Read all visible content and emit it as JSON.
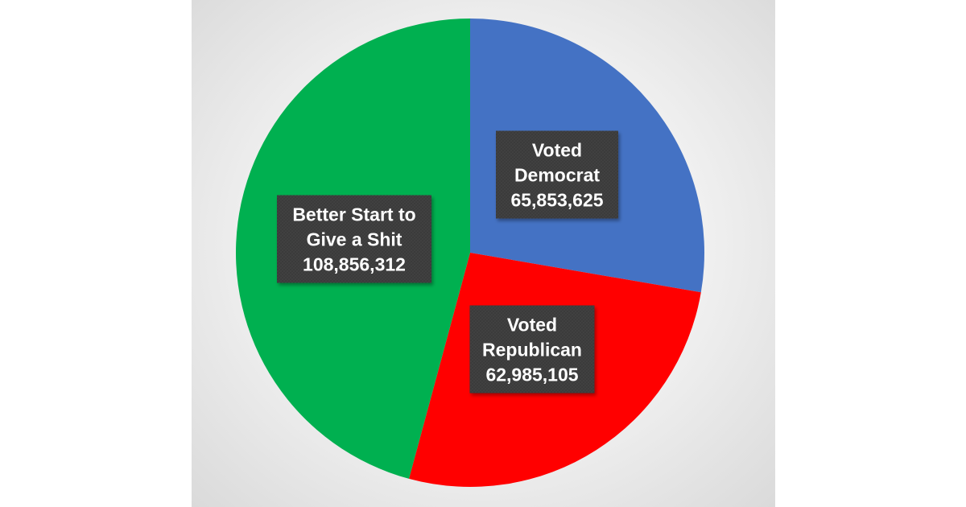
{
  "chart_data": {
    "type": "pie",
    "title": "",
    "slices": [
      {
        "label_lines": [
          "Voted",
          "Democrat",
          "65,853,625"
        ],
        "category": "Voted Democrat",
        "value": 65853625,
        "color": "#4472C4"
      },
      {
        "label_lines": [
          "Voted",
          "Republican",
          "62,985,105"
        ],
        "category": "Voted Republican",
        "value": 62985105,
        "color": "#FF0000"
      },
      {
        "label_lines": [
          "Better Start to",
          "Give a Shit",
          "108,856,312"
        ],
        "category": "Better Start to Give a Shit",
        "value": 108856312,
        "color": "#00B050"
      }
    ],
    "start_angle": "12 o'clock",
    "direction": "clockwise",
    "legend": "none",
    "data_labels": "inside, dark callout boxes"
  }
}
